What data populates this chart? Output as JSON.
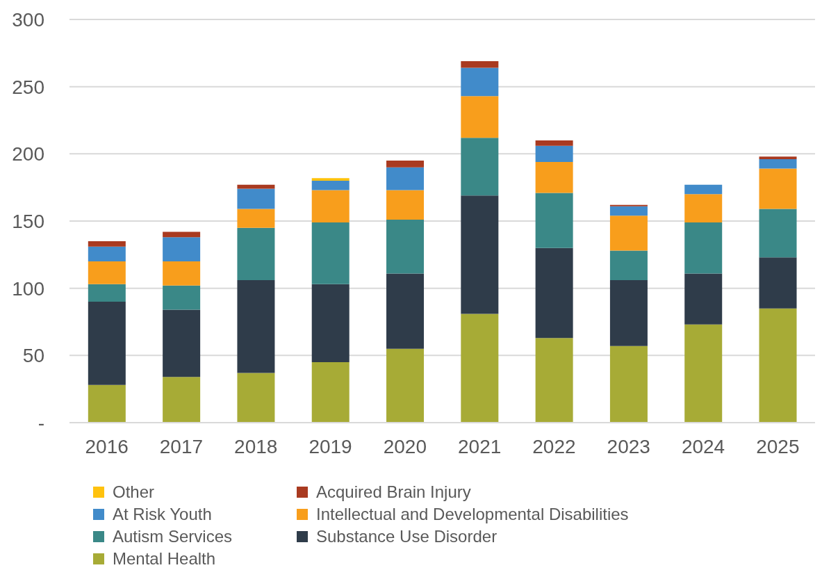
{
  "chart_data": {
    "type": "bar",
    "stacked": true,
    "categories": [
      "2016",
      "2017",
      "2018",
      "2019",
      "2020",
      "2021",
      "2022",
      "2023",
      "2024",
      "2025"
    ],
    "series": [
      {
        "name": "Mental Health",
        "color": "#a7ab36",
        "values": [
          28,
          34,
          37,
          45,
          55,
          81,
          63,
          57,
          73,
          85
        ]
      },
      {
        "name": "Substance Use Disorder",
        "color": "#2f3c4a",
        "values": [
          62,
          50,
          69,
          58,
          56,
          88,
          67,
          49,
          38,
          38
        ]
      },
      {
        "name": "Autism Services",
        "color": "#3a8887",
        "values": [
          13,
          18,
          39,
          46,
          40,
          43,
          41,
          22,
          38,
          36
        ]
      },
      {
        "name": "Intellectual and Developmental Disabilities",
        "color": "#f89e1c",
        "values": [
          17,
          18,
          14,
          24,
          22,
          31,
          23,
          26,
          21,
          30
        ]
      },
      {
        "name": "At Risk Youth",
        "color": "#418bca",
        "values": [
          11,
          18,
          15,
          7,
          17,
          21,
          12,
          7,
          7,
          7
        ]
      },
      {
        "name": "Acquired Brain Injury",
        "color": "#a93a20",
        "values": [
          4,
          4,
          3,
          0,
          5,
          5,
          4,
          1,
          0,
          2
        ]
      },
      {
        "name": "Other",
        "color": "#ffc20e",
        "values": [
          0,
          0,
          0,
          2,
          0,
          0,
          0,
          0,
          0,
          0
        ]
      }
    ],
    "ylim": [
      0,
      300
    ],
    "yticks": [
      {
        "value": 0,
        "label": "-"
      },
      50,
      100,
      150,
      200,
      250,
      300
    ],
    "grid": "y",
    "legend": "bottom"
  }
}
